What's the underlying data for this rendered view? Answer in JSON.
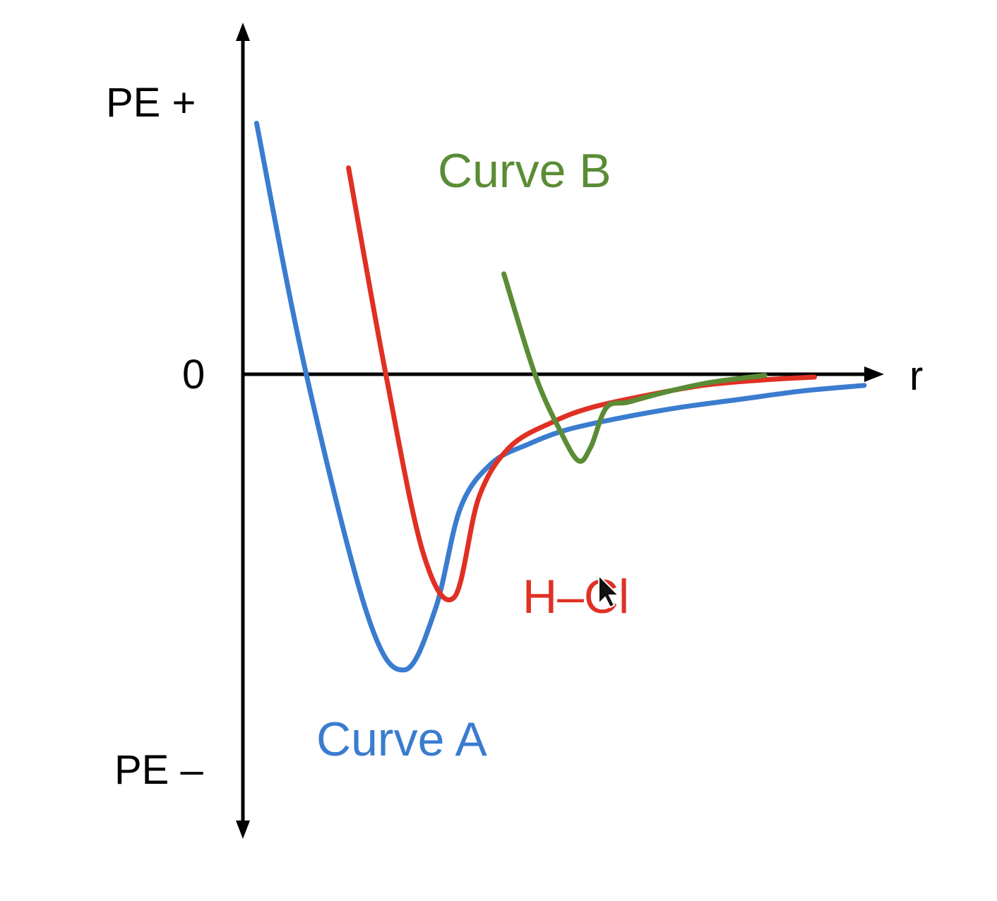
{
  "chart_data": {
    "type": "line",
    "xlabel": "r",
    "ylabel_top": "PE +",
    "ylabel_bottom": "PE –",
    "zero_label": "0",
    "grid": false,
    "legend": "none",
    "series": [
      {
        "name": "Curve A",
        "color": "#3a7ccf",
        "x": [
          0.22,
          1.0,
          2.0,
          2.6,
          3.1,
          3.5,
          4.0,
          4.6,
          5.2,
          6.0,
          7.0,
          8.0,
          9.0,
          10.0
        ],
        "y": [
          4.5,
          0.1,
          -4.3,
          -5.3,
          -4.2,
          -2.4,
          -1.6,
          -1.25,
          -1.0,
          -0.8,
          -0.6,
          -0.45,
          -0.3,
          -0.2
        ]
      },
      {
        "name": "H–Cl",
        "color": "#e03024",
        "x": [
          1.7,
          2.3,
          2.9,
          3.4,
          3.8,
          4.3,
          5.0,
          5.6,
          6.4,
          7.4,
          8.4,
          9.2
        ],
        "y": [
          3.7,
          0.0,
          -3.2,
          -4.0,
          -2.2,
          -1.3,
          -0.85,
          -0.6,
          -0.4,
          -0.2,
          -0.1,
          -0.05
        ]
      },
      {
        "name": "Curve B",
        "color": "#5a8c35",
        "x": [
          4.2,
          4.7,
          5.1,
          5.4,
          5.6,
          5.85,
          6.2,
          6.8,
          7.5,
          8.4
        ],
        "y": [
          1.8,
          0.0,
          -1.0,
          -1.55,
          -1.3,
          -0.6,
          -0.5,
          -0.32,
          -0.15,
          -0.02
        ]
      }
    ],
    "labels": {
      "curve_a": "Curve A",
      "hcl": "H–Cl",
      "curve_b": "Curve B"
    }
  }
}
